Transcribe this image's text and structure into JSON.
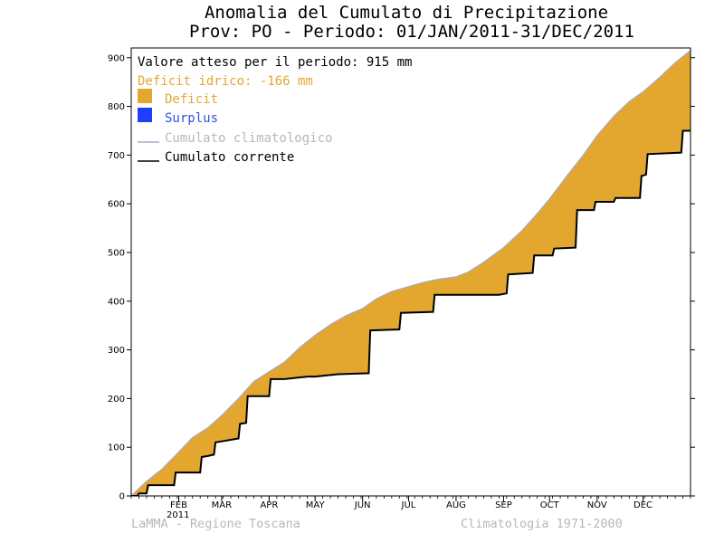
{
  "colors": {
    "deficit": "#e3a72f",
    "surplus": "#1f3fff",
    "climatological": "#a8a8c8",
    "current": "#000000",
    "deficit_text": "#e3a72f",
    "surplus_text": "#3050e0",
    "muted_text": "#b8b8b8"
  },
  "chart_data": {
    "type": "area",
    "title": "Anomalia del Cumulato di Precipitazione",
    "subtitle": "Prov: PO - Periodo: 01/JAN/2011-31/DEC/2011",
    "xlabel": "",
    "ylabel": "",
    "year_label": "2011",
    "xlim": [
      0,
      365
    ],
    "ylim": [
      0,
      920
    ],
    "yticks": [
      0,
      100,
      200,
      300,
      400,
      500,
      600,
      700,
      800,
      900
    ],
    "xticks": [
      {
        "label": "FEB",
        "day": 31
      },
      {
        "label": "MAR",
        "day": 59
      },
      {
        "label": "APR",
        "day": 90
      },
      {
        "label": "MAY",
        "day": 120
      },
      {
        "label": "JUN",
        "day": 151
      },
      {
        "label": "JUL",
        "day": 181
      },
      {
        "label": "AUG",
        "day": 212
      },
      {
        "label": "SEP",
        "day": 243
      },
      {
        "label": "OCT",
        "day": 273
      },
      {
        "label": "NOV",
        "day": 304
      },
      {
        "label": "DEC",
        "day": 334
      }
    ],
    "legend_position": "top-left",
    "legend": {
      "expected": "Valore atteso per il periodo: 915 mm",
      "deficit_idrico": "Deficit idrico: -166 mm",
      "deficit": "Deficit",
      "surplus": "Surplus",
      "climatological": "Cumulato climatologico",
      "current": "Cumulato corrente"
    },
    "series": [
      {
        "name": "Cumulato climatologico",
        "x": [
          0,
          10,
          20,
          31,
          40,
          50,
          59,
          70,
          80,
          90,
          100,
          110,
          120,
          130,
          140,
          151,
          160,
          170,
          181,
          190,
          200,
          212,
          220,
          230,
          243,
          255,
          265,
          273,
          285,
          295,
          304,
          315,
          325,
          334,
          345,
          355,
          365
        ],
        "y": [
          0,
          30,
          55,
          90,
          120,
          140,
          165,
          200,
          235,
          255,
          275,
          305,
          330,
          352,
          370,
          385,
          405,
          420,
          430,
          438,
          445,
          450,
          460,
          480,
          510,
          545,
          580,
          610,
          660,
          700,
          740,
          780,
          810,
          830,
          860,
          890,
          915
        ]
      },
      {
        "name": "Cumulato corrente",
        "x": [
          0,
          4,
          5,
          10,
          11,
          28,
          29,
          45,
          46,
          50,
          54,
          55,
          70,
          71,
          75,
          76,
          90,
          91,
          100,
          115,
          120,
          135,
          155,
          156,
          175,
          176,
          197,
          198,
          240,
          245,
          246,
          262,
          263,
          275,
          276,
          290,
          291,
          302,
          303,
          315,
          316,
          332,
          333,
          336,
          337,
          359,
          360,
          365
        ],
        "y": [
          0,
          0,
          5,
          5,
          22,
          22,
          48,
          48,
          80,
          82,
          85,
          110,
          118,
          148,
          150,
          205,
          205,
          240,
          240,
          245,
          245,
          250,
          252,
          340,
          342,
          376,
          378,
          413,
          413,
          416,
          455,
          458,
          494,
          494,
          508,
          510,
          587,
          587,
          604,
          604,
          612,
          612,
          657,
          660,
          702,
          705,
          750,
          750
        ]
      }
    ]
  },
  "footer": {
    "left": "LaMMA - Regione Toscana",
    "right": "Climatologia 1971-2000"
  }
}
